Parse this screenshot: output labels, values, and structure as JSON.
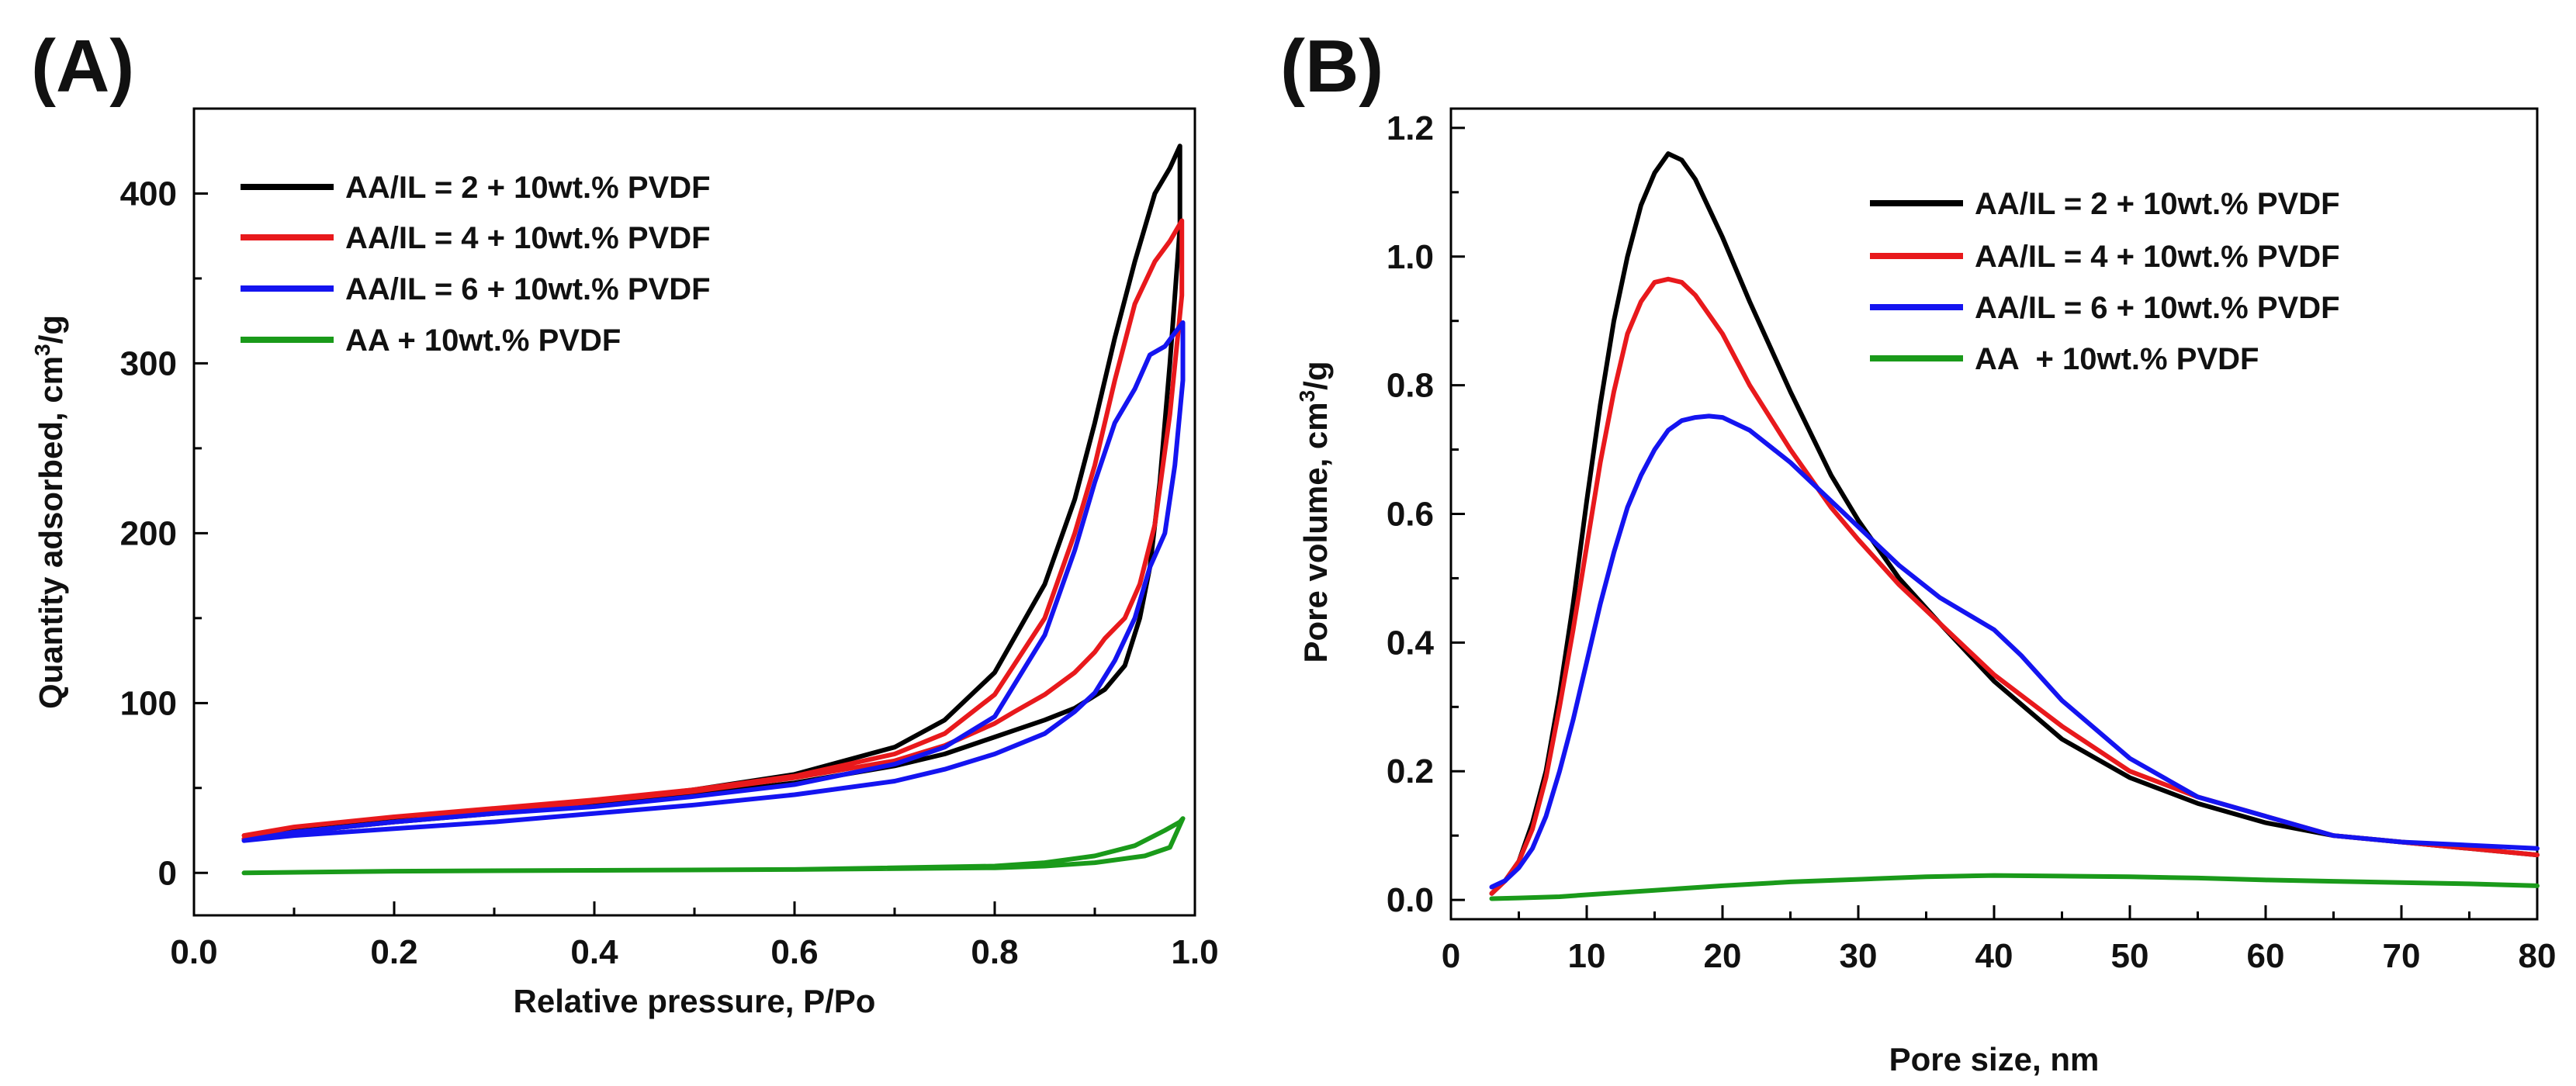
{
  "panels": [
    {
      "panel_label": "(A)",
      "chart_data": {
        "type": "line",
        "title": "",
        "xlabel": "Relative pressure, P/Po",
        "ylabel_main": "Quantity adsorbed, cm",
        "ylabel_sup": "3",
        "ylabel_tail": "/g",
        "xlim": [
          0.0,
          1.0
        ],
        "ylim": [
          -25,
          450
        ],
        "xticks": [
          0.0,
          0.2,
          0.4,
          0.6,
          0.8,
          1.0
        ],
        "xtick_labels": [
          "0.0",
          "0.2",
          "0.4",
          "0.6",
          "0.8",
          "1.0"
        ],
        "yticks": [
          0,
          100,
          200,
          300,
          400
        ],
        "ytick_labels": [
          "0",
          "100",
          "200",
          "300",
          "400"
        ],
        "legend_position": "top-left",
        "series": [
          {
            "name": "AA/IL = 2 + 10wt.% PVDF",
            "color": "#000000",
            "x": [
              0.05,
              0.1,
              0.2,
              0.3,
              0.4,
              0.5,
              0.6,
              0.7,
              0.75,
              0.8,
              0.85,
              0.88,
              0.9,
              0.92,
              0.94,
              0.96,
              0.975,
              0.985,
              0.985,
              0.975,
              0.965,
              0.955,
              0.945,
              0.93,
              0.91,
              0.88,
              0.85,
              0.82,
              0.8,
              0.78,
              0.75,
              0.7,
              0.65,
              0.6,
              0.5,
              0.4,
              0.3,
              0.2,
              0.1,
              0.05
            ],
            "y": [
              20,
              26,
              32,
              37,
              42,
              49,
              58,
              74,
              90,
              118,
              170,
              220,
              265,
              315,
              360,
              400,
              415,
              428,
              380,
              300,
              230,
              180,
              150,
              122,
              108,
              97,
              90,
              84,
              80,
              76,
              70,
              63,
              58,
              53,
              46,
              40,
              35,
              30,
              24,
              20
            ]
          },
          {
            "name": "AA/IL = 4 + 10wt.% PVDF",
            "color": "#e8191c",
            "x": [
              0.05,
              0.1,
              0.2,
              0.3,
              0.4,
              0.5,
              0.6,
              0.7,
              0.75,
              0.8,
              0.85,
              0.88,
              0.9,
              0.92,
              0.94,
              0.96,
              0.975,
              0.987,
              0.987,
              0.975,
              0.96,
              0.945,
              0.93,
              0.91,
              0.9,
              0.88,
              0.85,
              0.82,
              0.8,
              0.75,
              0.7,
              0.6,
              0.5,
              0.4,
              0.3,
              0.2,
              0.1,
              0.05
            ],
            "y": [
              22,
              27,
              33,
              38,
              43,
              49,
              57,
              70,
              82,
              105,
              150,
              200,
              240,
              290,
              335,
              360,
              372,
              384,
              340,
              270,
              205,
              170,
              150,
              138,
              130,
              118,
              105,
              95,
              88,
              75,
              66,
              56,
              48,
              42,
              36,
              30,
              24,
              20
            ]
          },
          {
            "name": "AA/IL = 6 + 10wt.% PVDF",
            "color": "#1414f0",
            "x": [
              0.05,
              0.1,
              0.2,
              0.3,
              0.4,
              0.5,
              0.6,
              0.7,
              0.75,
              0.8,
              0.85,
              0.88,
              0.9,
              0.92,
              0.94,
              0.955,
              0.97,
              0.98,
              0.988,
              0.988,
              0.98,
              0.97,
              0.955,
              0.94,
              0.92,
              0.9,
              0.88,
              0.85,
              0.8,
              0.75,
              0.7,
              0.6,
              0.5,
              0.4,
              0.3,
              0.2,
              0.1,
              0.05
            ],
            "y": [
              19,
              24,
              30,
              35,
              39,
              45,
              52,
              64,
              74,
              92,
              140,
              190,
              230,
              265,
              285,
              305,
              310,
              318,
              324,
              290,
              240,
              200,
              180,
              150,
              125,
              106,
              95,
              82,
              70,
              61,
              54,
              46,
              40,
              35,
              30,
              26,
              22,
              19
            ]
          },
          {
            "name": "AA + 10wt.% PVDF",
            "color": "#1a9a1a",
            "x": [
              0.05,
              0.2,
              0.4,
              0.6,
              0.8,
              0.85,
              0.9,
              0.94,
              0.97,
              0.985,
              0.988,
              0.975,
              0.95,
              0.9,
              0.85,
              0.8,
              0.6,
              0.4,
              0.2,
              0.05
            ],
            "y": [
              0,
              1,
              1.5,
              2,
              4,
              6,
              10,
              16,
              25,
              30,
              32,
              15,
              10,
              6,
              4,
              3,
              2,
              1.5,
              1,
              0
            ]
          }
        ]
      }
    },
    {
      "panel_label": "(B)",
      "chart_data": {
        "type": "line",
        "title": "",
        "xlabel": "Pore size, nm",
        "ylabel_main": "Pore volume, cm",
        "ylabel_sup": "3",
        "ylabel_tail": "/g",
        "xlim": [
          0,
          80
        ],
        "ylim": [
          -0.03,
          1.23
        ],
        "xticks": [
          0,
          10,
          20,
          30,
          40,
          50,
          60,
          70,
          80
        ],
        "xtick_labels": [
          "0",
          "10",
          "20",
          "30",
          "40",
          "50",
          "60",
          "70",
          "80"
        ],
        "yticks": [
          0.0,
          0.2,
          0.4,
          0.6,
          0.8,
          1.0,
          1.2
        ],
        "ytick_labels": [
          "0.0",
          "0.2",
          "0.4",
          "0.6",
          "0.8",
          "1.0",
          "1.2"
        ],
        "legend_position": "top-right",
        "series": [
          {
            "name": "AA/IL = 2 + 10wt.% PVDF",
            "color": "#000000",
            "x": [
              3,
              4,
              5,
              6,
              7,
              8,
              9,
              10,
              11,
              12,
              13,
              14,
              15,
              16,
              17,
              18,
              20,
              22,
              25,
              28,
              30,
              33,
              36,
              40,
              45,
              50,
              55,
              60,
              65,
              70,
              75,
              80
            ],
            "y": [
              0.01,
              0.03,
              0.06,
              0.12,
              0.2,
              0.32,
              0.46,
              0.62,
              0.77,
              0.9,
              1.0,
              1.08,
              1.13,
              1.16,
              1.15,
              1.12,
              1.03,
              0.93,
              0.79,
              0.66,
              0.59,
              0.5,
              0.43,
              0.34,
              0.25,
              0.19,
              0.15,
              0.12,
              0.1,
              0.09,
              0.08,
              0.07
            ]
          },
          {
            "name": "AA/IL = 4 + 10wt.% PVDF",
            "color": "#e8191c",
            "x": [
              3,
              4,
              5,
              6,
              7,
              8,
              9,
              10,
              11,
              12,
              13,
              14,
              15,
              16,
              17,
              18,
              20,
              22,
              25,
              28,
              30,
              33,
              36,
              40,
              45,
              50,
              55,
              60,
              65,
              70,
              75,
              80
            ],
            "y": [
              0.01,
              0.03,
              0.06,
              0.11,
              0.19,
              0.3,
              0.42,
              0.55,
              0.68,
              0.79,
              0.88,
              0.93,
              0.96,
              0.965,
              0.96,
              0.94,
              0.88,
              0.8,
              0.7,
              0.61,
              0.56,
              0.49,
              0.43,
              0.35,
              0.27,
              0.2,
              0.16,
              0.13,
              0.1,
              0.09,
              0.08,
              0.07
            ]
          },
          {
            "name": "AA/IL = 6 + 10wt.% PVDF",
            "color": "#1414f0",
            "x": [
              3,
              4,
              5,
              6,
              7,
              8,
              9,
              10,
              11,
              12,
              13,
              14,
              15,
              16,
              17,
              18,
              19,
              20,
              22,
              25,
              28,
              30,
              33,
              36,
              40,
              42,
              45,
              50,
              55,
              60,
              65,
              70,
              75,
              80
            ],
            "y": [
              0.02,
              0.03,
              0.05,
              0.08,
              0.13,
              0.2,
              0.28,
              0.37,
              0.46,
              0.54,
              0.61,
              0.66,
              0.7,
              0.73,
              0.745,
              0.75,
              0.752,
              0.75,
              0.73,
              0.68,
              0.62,
              0.58,
              0.52,
              0.47,
              0.42,
              0.38,
              0.31,
              0.22,
              0.16,
              0.13,
              0.1,
              0.09,
              0.085,
              0.08
            ]
          },
          {
            "name": "AA  + 10wt.% PVDF",
            "color": "#1a9a1a",
            "x": [
              3,
              5,
              8,
              10,
              15,
              20,
              25,
              30,
              35,
              40,
              45,
              50,
              55,
              60,
              65,
              70,
              75,
              80
            ],
            "y": [
              0.002,
              0.003,
              0.005,
              0.008,
              0.015,
              0.022,
              0.028,
              0.032,
              0.036,
              0.038,
              0.037,
              0.036,
              0.034,
              0.031,
              0.029,
              0.027,
              0.025,
              0.022
            ]
          }
        ]
      }
    }
  ]
}
